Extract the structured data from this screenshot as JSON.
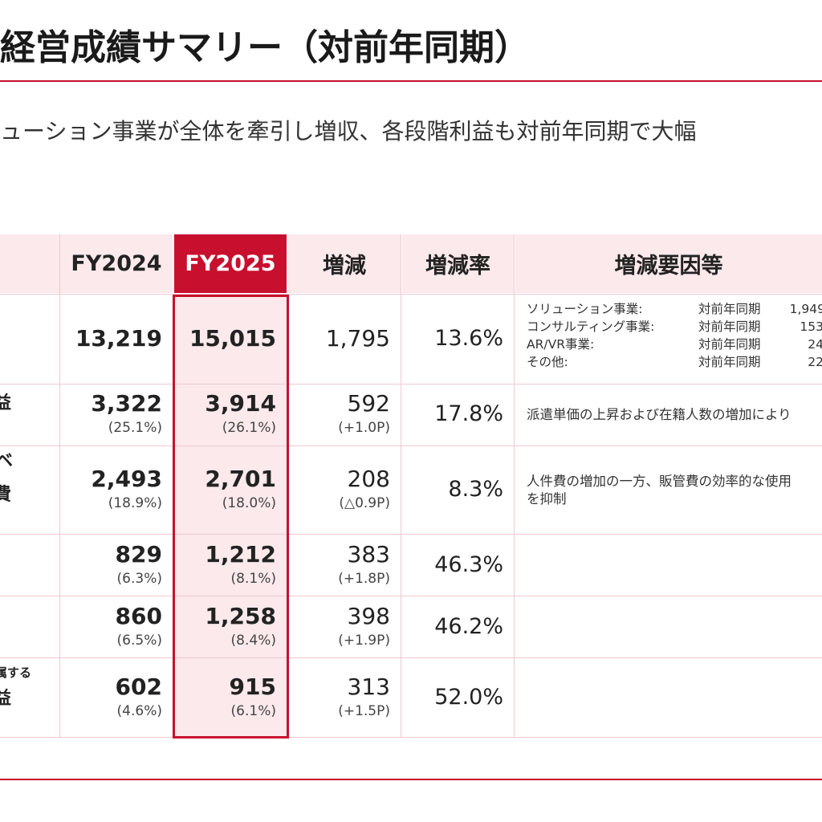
{
  "title": "経営成績サマリー（対前年同期）",
  "subtitle": "ューション事業が全体を牽引し増収、各段階利益も対前年同期で大幅",
  "colors": {
    "accent": "#c8102e",
    "header_bg": "#fbe9ec"
  },
  "table": {
    "headers": [
      "FY2024",
      "FY2025",
      "増減",
      "増減率",
      "増減要因等"
    ],
    "rows": [
      {
        "label_lines": [],
        "fy2024": "13,219",
        "fy2024_ratio": "",
        "fy2025": "15,015",
        "fy2025_ratio": "",
        "change": "1,795",
        "change_pt": "",
        "rate": "13.6%",
        "factors": [
          {
            "name": "ソリューション事業:",
            "tag": "対前年同期",
            "value": "1,949"
          },
          {
            "name": "コンサルティング事業:",
            "tag": "対前年同期",
            "value": "153"
          },
          {
            "name": "AR/VR事業:",
            "tag": "対前年同期",
            "value": "24"
          },
          {
            "name": "その他:",
            "tag": "対前年同期",
            "value": "22"
          }
        ]
      },
      {
        "label_lines": [
          "益"
        ],
        "fy2024": "3,322",
        "fy2024_ratio": "(25.1%)",
        "fy2025": "3,914",
        "fy2025_ratio": "(26.1%)",
        "change": "592",
        "change_pt": "(+1.0P)",
        "rate": "17.8%",
        "note": "派遣単価の上昇および在籍人数の増加により"
      },
      {
        "label_lines": [
          "ベ",
          "費"
        ],
        "fy2024": "2,493",
        "fy2024_ratio": "(18.9%)",
        "fy2025": "2,701",
        "fy2025_ratio": "(18.0%)",
        "change": "208",
        "change_pt": "(△0.9P)",
        "rate": "8.3%",
        "note_lines": [
          "人件費の増加の一方、販管費の効率的な使用",
          "を抑制"
        ]
      },
      {
        "label_lines": [],
        "fy2024": "829",
        "fy2024_ratio": "(6.3%)",
        "fy2025": "1,212",
        "fy2025_ratio": "(8.1%)",
        "change": "383",
        "change_pt": "(+1.8P)",
        "rate": "46.3%"
      },
      {
        "label_lines": [],
        "fy2024": "860",
        "fy2024_ratio": "(6.5%)",
        "fy2025": "1,258",
        "fy2025_ratio": "(8.4%)",
        "change": "398",
        "change_pt": "(+1.9P)",
        "rate": "46.2%"
      },
      {
        "label_lines": [
          "属する",
          "益"
        ],
        "fy2024": "602",
        "fy2024_ratio": "(4.6%)",
        "fy2025": "915",
        "fy2025_ratio": "(6.1%)",
        "change": "313",
        "change_pt": "(+1.5P)",
        "rate": "52.0%"
      }
    ]
  }
}
